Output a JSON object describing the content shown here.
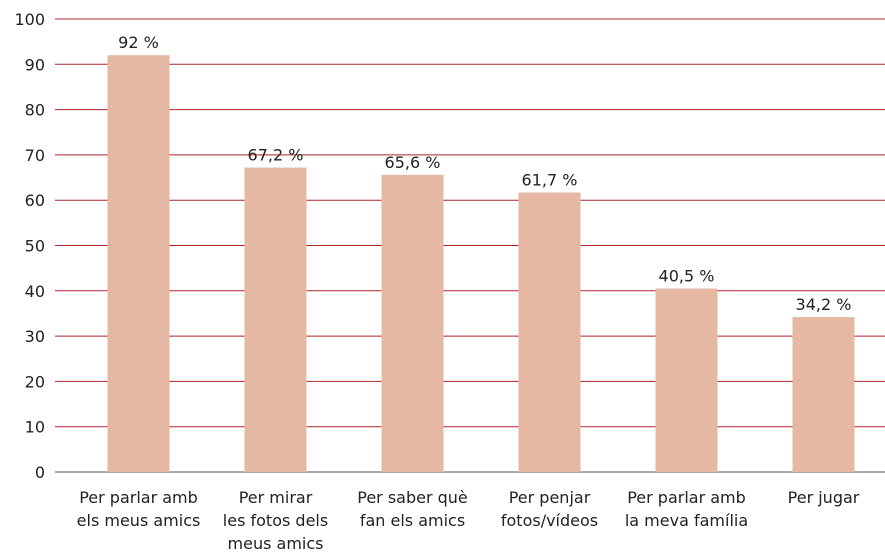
{
  "chart_data": {
    "type": "bar",
    "categories": [
      [
        "Per parlar amb",
        "els meus amics"
      ],
      [
        "Per mirar",
        "les fotos dels",
        "meus amics"
      ],
      [
        "Per saber què",
        "fan els amics"
      ],
      [
        "Per penjar",
        "fotos/vídeos"
      ],
      [
        "Per parlar amb",
        "la meva família"
      ],
      [
        "Per jugar"
      ]
    ],
    "values": [
      92,
      67.2,
      65.6,
      61.7,
      40.5,
      34.2
    ],
    "value_labels": [
      "92 %",
      "67,2 %",
      "65,6 %",
      "61,7 %",
      "40,5 %",
      "34,2 %"
    ],
    "color": "#e5b8a3",
    "ylim": [
      0,
      100
    ],
    "yticks": [
      0,
      10,
      20,
      30,
      40,
      50,
      60,
      70,
      80,
      90,
      100
    ],
    "grid": true,
    "grid_color": "#b0232a"
  }
}
